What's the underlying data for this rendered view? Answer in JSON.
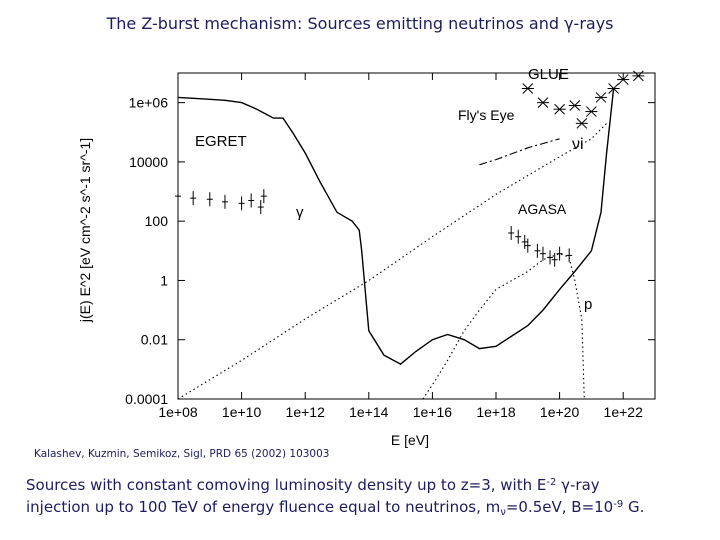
{
  "slide": {
    "title": "The Z-burst mechanism: Sources emitting neutrinos and γ-rays",
    "citation": "Kalashev, Kuzmin, Semikoz, Sigl, PRD 65 (2002) 103003",
    "caption": {
      "part1": "Sources with constant comoving luminosity density up to z=3, with E",
      "exp1": "-2",
      "part2": " γ-ray",
      "part3": "injection up to 100 TeV of energy fluence equal to neutrinos, m",
      "sub1": "ν",
      "part4": "=0.5eV, B=10",
      "exp2": "-9",
      "part5": " G."
    }
  },
  "chart_data": {
    "type": "line",
    "title": "",
    "xlabel": "E [eV]",
    "ylabel": "j(E) E^2 [eV cm^-2 s^-1 sr^-1]",
    "x_scale": "log",
    "y_scale": "log",
    "xlim": [
      100000000.0,
      1e+23
    ],
    "ylim": [
      0.0001,
      10000000
    ],
    "x_tick_labels": [
      "1e+08",
      "1e+10",
      "1e+12",
      "1e+14",
      "1e+16",
      "1e+18",
      "1e+20",
      "1e+22"
    ],
    "y_tick_labels": [
      "1e+06",
      "10000",
      "100",
      "1",
      "0.01",
      "0.0001"
    ],
    "grid": false,
    "series": [
      {
        "name": "γ",
        "style": "solid",
        "points": [
          [
            100000000.0,
            1500000.0
          ],
          [
            300000000.0,
            1400000.0
          ],
          [
            1000000000.0,
            1300000.0
          ],
          [
            3000000000.0,
            1200000.0
          ],
          [
            10000000000.0,
            1000000.0
          ],
          [
            30000000000.0,
            600000.0
          ],
          [
            100000000000.0,
            300000.0
          ],
          [
            200000000000.0,
            300000.0
          ],
          [
            400000000000.0,
            100000.0
          ],
          [
            1000000000000.0,
            20000.0
          ],
          [
            3000000000000.0,
            2000
          ],
          [
            10000000000000.0,
            200
          ],
          [
            30000000000000.0,
            100
          ],
          [
            50000000000000.0,
            50
          ],
          [
            60000000000000.0,
            10
          ],
          [
            80000000000000.0,
            0.3
          ],
          [
            100000000000000.0,
            0.02
          ],
          [
            300000000000000.0,
            0.003
          ],
          [
            1000000000000000.0,
            0.0015
          ],
          [
            3000000000000000.0,
            0.004
          ],
          [
            1e+16,
            0.01
          ],
          [
            3e+16,
            0.015
          ],
          [
            1e+17,
            0.01
          ],
          [
            3e+17,
            0.005
          ],
          [
            1e+18,
            0.006
          ],
          [
            1e+19,
            0.03
          ],
          [
            3e+19,
            0.1
          ],
          [
            1e+20,
            0.5
          ],
          [
            3e+20,
            2
          ],
          [
            6e+20,
            5
          ],
          [
            1e+21,
            10
          ],
          [
            2e+21,
            200
          ],
          [
            3e+21,
            20000
          ],
          [
            5e+21,
            3000000.0
          ]
        ]
      },
      {
        "name": "νi",
        "style": "dotted",
        "points": [
          [
            100000000.0,
            0.0001
          ],
          [
            10000000000.0,
            0.002
          ],
          [
            1000000000000.0,
            0.05
          ],
          [
            100000000000000.0,
            1
          ],
          [
            1e+16,
            30
          ],
          [
            1e+18,
            800
          ],
          [
            1e+20,
            15000
          ],
          [
            1e+21,
            60000
          ],
          [
            3e+21,
            200000
          ]
        ]
      },
      {
        "name": "p",
        "style": "dotted",
        "points": [
          [
            5000000000000000.0,
            0.0001
          ],
          [
            1e+16,
            0.0003
          ],
          [
            3e+16,
            0.002
          ],
          [
            1e+17,
            0.02
          ],
          [
            3e+17,
            0.1
          ],
          [
            1e+18,
            0.5
          ],
          [
            1e+19,
            2
          ],
          [
            3e+19,
            5
          ],
          [
            1e+20,
            8
          ],
          [
            2e+20,
            6
          ],
          [
            3e+20,
            1
          ],
          [
            5e+20,
            0.05
          ],
          [
            6e+20,
            0.0001
          ]
        ]
      },
      {
        "name": "Fly's Eye",
        "style": "dashdot",
        "points": [
          [
            3e+17,
            8000
          ],
          [
            1e+18,
            12000
          ],
          [
            1e+19,
            30000
          ],
          [
            1e+20,
            60000
          ]
        ]
      }
    ],
    "data_sets": [
      {
        "name": "EGRET",
        "marker": "plus-errorbar",
        "points": [
          [
            100000000.0,
            700
          ],
          [
            300000000.0,
            600
          ],
          [
            1000000000.0,
            550
          ],
          [
            3000000000.0,
            450
          ],
          [
            10000000000.0,
            400
          ],
          [
            20000000000.0,
            500
          ],
          [
            40000000000.0,
            300
          ],
          [
            50000000000.0,
            700
          ]
        ]
      },
      {
        "name": "AGASA",
        "marker": "plus-errorbar",
        "points": [
          [
            3e+18,
            40
          ],
          [
            5e+18,
            30
          ],
          [
            8e+18,
            20
          ],
          [
            1e+19,
            15
          ],
          [
            2e+19,
            10
          ],
          [
            3e+19,
            8
          ],
          [
            5e+19,
            6
          ],
          [
            7e+19,
            5
          ],
          [
            1e+20,
            8
          ],
          [
            2e+20,
            7
          ]
        ]
      },
      {
        "name": "GLUE",
        "marker": "star-x",
        "points": [
          [
            1e+19,
            3000000.0
          ],
          [
            3e+19,
            1000000.0
          ],
          [
            1e+20,
            600000.0
          ],
          [
            3e+20,
            800000.0
          ],
          [
            5e+20,
            200000.0
          ],
          [
            1e+21,
            500000.0
          ],
          [
            2e+21,
            1500000.0
          ],
          [
            5e+21,
            3000000.0
          ],
          [
            1e+22,
            6000000.0
          ],
          [
            3e+22,
            8000000.0
          ]
        ]
      }
    ],
    "series_labels": [
      {
        "name": "EGRET",
        "position": "upper-left, near EGRET data"
      },
      {
        "name": "γ",
        "position": "center, below gamma curve plateau"
      },
      {
        "name": "GLUE",
        "position": "top-right"
      },
      {
        "name": "Fly's Eye",
        "position": "top-right, above Fly's Eye line"
      },
      {
        "name": "νi",
        "position": "right, near neutrino line"
      },
      {
        "name": "AGASA",
        "position": "right, above AGASA data"
      },
      {
        "name": "p",
        "position": "lower-right, near proton curve"
      }
    ]
  }
}
